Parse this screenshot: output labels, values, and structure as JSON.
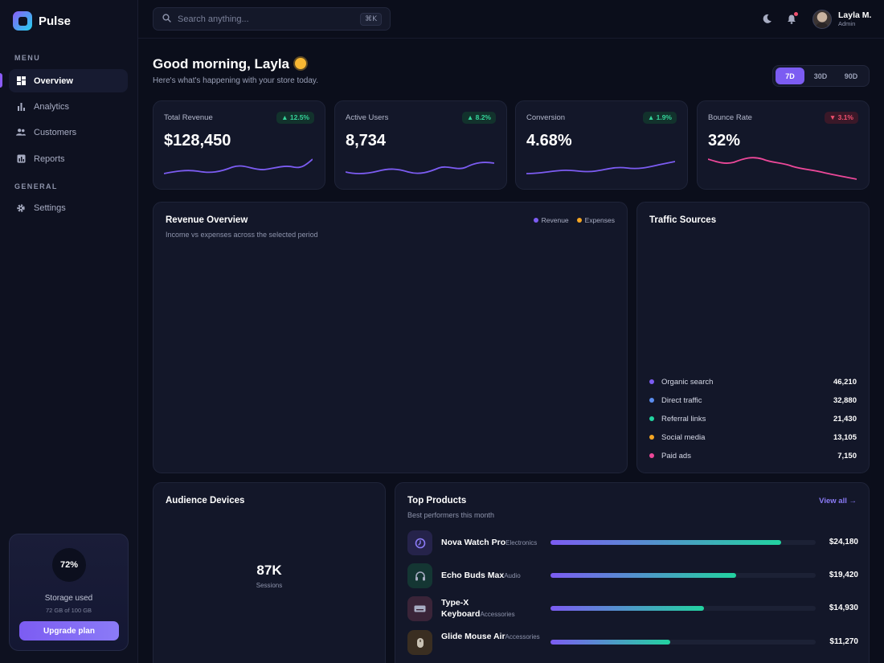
{
  "brand": {
    "name": "Pulse"
  },
  "sidebar": {
    "menu_label": "MENU",
    "general_label": "GENERAL",
    "items": [
      {
        "label": "Overview",
        "icon": "grid-icon",
        "active": true
      },
      {
        "label": "Analytics",
        "icon": "bar-chart-icon",
        "active": false
      },
      {
        "label": "Customers",
        "icon": "users-icon",
        "active": false
      },
      {
        "label": "Reports",
        "icon": "report-icon",
        "active": false
      }
    ],
    "general_items": [
      {
        "label": "Settings",
        "icon": "gear-icon"
      }
    ],
    "storage": {
      "percent_label": "72%",
      "percent": 72,
      "title": "Storage used",
      "detail": "72 GB of 100 GB",
      "button": "Upgrade plan"
    }
  },
  "header": {
    "search_placeholder": "Search anything...",
    "shortcut": "⌘K",
    "user": {
      "name": "Layla M.",
      "role": "Admin"
    }
  },
  "greeting": {
    "title": "Good morning, Layla",
    "subtitle": "Here's what's happening with your store today."
  },
  "range": {
    "options": [
      "7D",
      "30D",
      "90D"
    ],
    "selected": "7D"
  },
  "kpis": [
    {
      "label": "Total Revenue",
      "value": "$128,450",
      "change": "▲ 12.5%",
      "trend": "up",
      "color": "#7c5cf2"
    },
    {
      "label": "Active Users",
      "value": "8,734",
      "change": "▲ 8.2%",
      "trend": "up",
      "color": "#7c5cf2"
    },
    {
      "label": "Conversion",
      "value": "4.68%",
      "change": "▲ 1.9%",
      "trend": "up",
      "color": "#7c5cf2"
    },
    {
      "label": "Bounce Rate",
      "value": "32%",
      "change": "▼ 3.1%",
      "trend": "down",
      "color": "#ec4899"
    }
  ],
  "revenue_overview": {
    "title": "Revenue Overview",
    "subtitle": "Income vs expenses across the selected period",
    "legend": [
      {
        "label": "Revenue",
        "color": "#7c5cf2"
      },
      {
        "label": "Expenses",
        "color": "#f5a623"
      }
    ]
  },
  "traffic": {
    "title": "Traffic Sources",
    "rows": [
      {
        "label": "Organic search",
        "value": "46,210",
        "color": "#7c5cf2"
      },
      {
        "label": "Direct traffic",
        "value": "32,880",
        "color": "#5b8def"
      },
      {
        "label": "Referral links",
        "value": "21,430",
        "color": "#22d3a0"
      },
      {
        "label": "Social media",
        "value": "13,105",
        "color": "#f5a623"
      },
      {
        "label": "Paid ads",
        "value": "7,150",
        "color": "#ec4899"
      }
    ]
  },
  "devices": {
    "title": "Audience Devices",
    "center_value": "87K",
    "center_label": "Sessions"
  },
  "products": {
    "title": "Top Products",
    "subtitle": "Best performers this month",
    "view_all": "View all →",
    "rows": [
      {
        "name": "Nova Watch Pro",
        "category": "Electronics",
        "value": "$24,180",
        "share": 0.87,
        "icon": "watch-icon",
        "thumb_bg": "#25234a"
      },
      {
        "name": "Echo Buds Max",
        "category": "Audio",
        "value": "$19,420",
        "share": 0.7,
        "icon": "headphones-icon",
        "thumb_bg": "#143633"
      },
      {
        "name": "Type-X Keyboard",
        "category": "Accessories",
        "value": "$14,930",
        "share": 0.58,
        "icon": "keyboard-icon",
        "thumb_bg": "#3a2438"
      },
      {
        "name": "Glide Mouse Air",
        "category": "Accessories",
        "value": "$11,270",
        "share": 0.45,
        "icon": "mouse-icon",
        "thumb_bg": "#3a2e21"
      }
    ]
  }
}
